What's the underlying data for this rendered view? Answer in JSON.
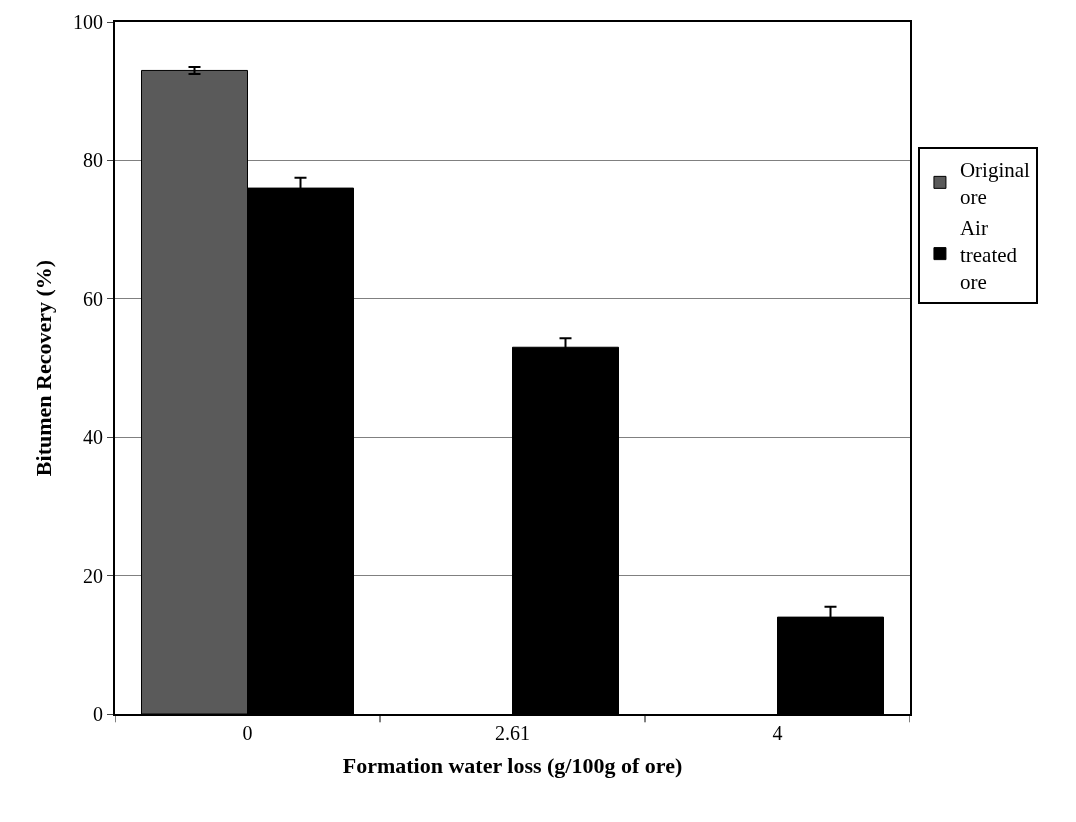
{
  "chart_data": {
    "type": "bar",
    "xlabel": "Formation water loss (g/100g of ore)",
    "ylabel": "Bitumen Recovery (%)",
    "categories": [
      "0",
      "2.61",
      "4"
    ],
    "series": [
      {
        "name": "Original ore",
        "color": "#5a5a5a",
        "values": [
          93,
          null,
          null
        ],
        "errors": [
          0.5,
          null,
          null
        ]
      },
      {
        "name": "Air treated ore",
        "color": "#000000",
        "values": [
          76,
          53,
          14
        ],
        "errors": [
          1.5,
          1.3,
          1.5
        ]
      }
    ],
    "ylim": [
      0,
      100
    ],
    "yticks": [
      0,
      20,
      40,
      60,
      80,
      100
    ],
    "grid": "y",
    "legend": "right"
  }
}
